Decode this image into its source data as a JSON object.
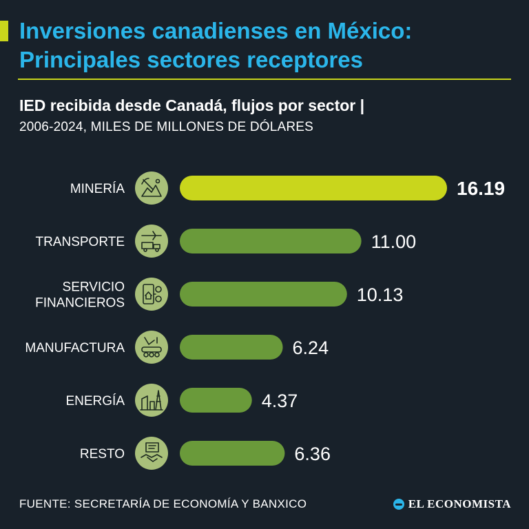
{
  "header": {
    "title_line1": "Inversiones canadienses en México:",
    "title_line2": "Principales sectores receptores"
  },
  "subtitle": "IED recibida desde Canadá, flujos por sector |",
  "units": "2006-2024, MILES DE MILLONES DE DÓLARES",
  "footer": {
    "source": "FUENTE: SECRETARÍA DE ECONOMÍA Y BANXICO",
    "brand": "EL ECONOMISTA"
  },
  "colors": {
    "background": "#18212a",
    "title": "#2bb6ea",
    "highlight_bar": "#c9d61c",
    "bar": "#6a9a3a",
    "icon_circle": "#a9c07a",
    "icon_stroke": "#1d2a20"
  },
  "chart_data": {
    "type": "bar",
    "orientation": "horizontal",
    "categories": [
      {
        "label_lines": [
          "MINERÍA"
        ],
        "icon": "mining-icon"
      },
      {
        "label_lines": [
          "TRANSPORTE"
        ],
        "icon": "transport-icon"
      },
      {
        "label_lines": [
          "SERVICIO",
          "FINANCIEROS"
        ],
        "icon": "finance-icon"
      },
      {
        "label_lines": [
          "MANUFACTURA"
        ],
        "icon": "manufacturing-icon"
      },
      {
        "label_lines": [
          "ENERGÍA"
        ],
        "icon": "energy-icon"
      },
      {
        "label_lines": [
          "RESTO"
        ],
        "icon": "handshake-icon"
      }
    ],
    "values": [
      16.19,
      11.0,
      10.13,
      6.24,
      4.37,
      6.36
    ],
    "value_labels": [
      "16.19",
      "11.00",
      "10.13",
      "6.24",
      "4.37",
      "6.36"
    ],
    "highlight_index": 0,
    "xlim": [
      0,
      16.19
    ],
    "grid": false,
    "legend": "none"
  }
}
